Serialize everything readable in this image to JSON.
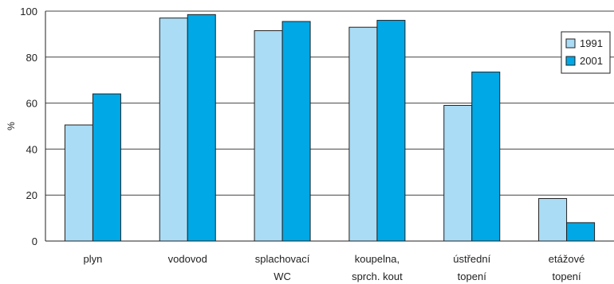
{
  "chart_data": {
    "type": "bar",
    "ylabel": "%",
    "ylim": [
      0,
      100
    ],
    "yticks": [
      0,
      20,
      40,
      60,
      80,
      100
    ],
    "grid": true,
    "legend_position": "right",
    "categories": [
      [
        "plyn"
      ],
      [
        "vodovod"
      ],
      [
        "splachovací",
        "WC"
      ],
      [
        "koupelna,",
        "sprch. kout"
      ],
      [
        "ústřední",
        "topení"
      ],
      [
        "etážové",
        "topení"
      ]
    ],
    "series": [
      {
        "name": "1991",
        "color": "#aadcf5",
        "values": [
          50.5,
          97,
          91.5,
          93,
          59,
          18.5
        ]
      },
      {
        "name": "2001",
        "color": "#00a8e6",
        "values": [
          64,
          98.5,
          95.5,
          96,
          73.5,
          8
        ]
      }
    ]
  }
}
